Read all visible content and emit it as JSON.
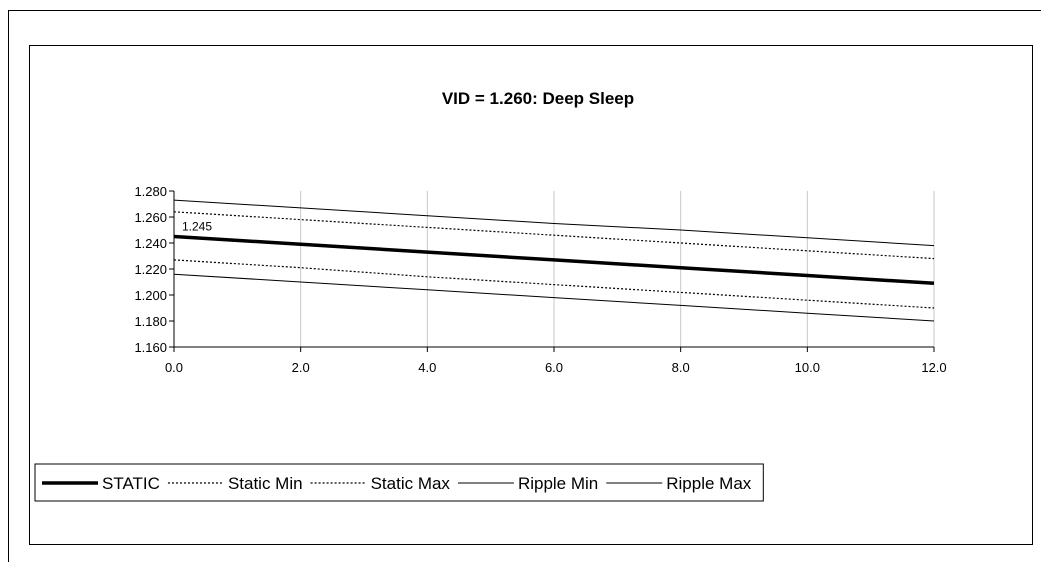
{
  "chart_data": {
    "type": "line",
    "title": "VID = 1.260: Deep Sleep",
    "xlabel": "",
    "ylabel": "",
    "xlim": [
      0,
      12
    ],
    "ylim": [
      1.16,
      1.28
    ],
    "x_ticks": [
      "0.0",
      "2.0",
      "4.0",
      "6.0",
      "8.0",
      "10.0",
      "12.0"
    ],
    "y_ticks": [
      "1.160",
      "1.180",
      "1.200",
      "1.220",
      "1.240",
      "1.260",
      "1.280"
    ],
    "grid": "vertical",
    "legend_position": "bottom",
    "series": [
      {
        "name": "STATIC",
        "style": "thick",
        "x": [
          0,
          2,
          4,
          6,
          8,
          10,
          12
        ],
        "values": [
          1.245,
          1.239,
          1.233,
          1.227,
          1.221,
          1.215,
          1.209
        ]
      },
      {
        "name": "Static Min",
        "style": "dotted",
        "x": [
          0,
          2,
          4,
          6,
          8,
          10,
          12
        ],
        "values": [
          1.227,
          1.221,
          1.214,
          1.208,
          1.202,
          1.196,
          1.19
        ]
      },
      {
        "name": "Static Max",
        "style": "dotted",
        "x": [
          0,
          2,
          4,
          6,
          8,
          10,
          12
        ],
        "values": [
          1.264,
          1.258,
          1.252,
          1.246,
          1.24,
          1.234,
          1.228
        ]
      },
      {
        "name": "Ripple Min",
        "style": "thin",
        "x": [
          0,
          2,
          4,
          6,
          8,
          10,
          12
        ],
        "values": [
          1.216,
          1.21,
          1.204,
          1.198,
          1.192,
          1.186,
          1.18
        ]
      },
      {
        "name": "Ripple Max",
        "style": "thin",
        "x": [
          0,
          2,
          4,
          6,
          8,
          10,
          12
        ],
        "values": [
          1.273,
          1.267,
          1.261,
          1.255,
          1.25,
          1.244,
          1.238
        ]
      }
    ],
    "annotations": [
      {
        "text": "1.245",
        "x": 0,
        "y": 1.245
      }
    ]
  }
}
